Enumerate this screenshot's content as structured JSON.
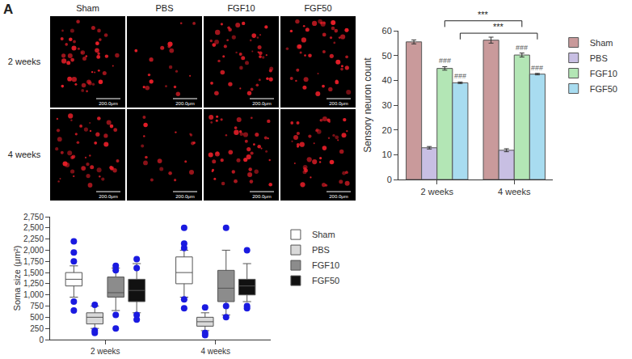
{
  "figure": {
    "panel_a": {
      "label": "A",
      "columns": [
        "Sham",
        "PBS",
        "FGF10",
        "FGF50"
      ],
      "rows": [
        "2 weeks",
        "4 weeks"
      ],
      "scale_bar": "200.0μm"
    }
  },
  "chart_data": [
    {
      "panel": "B",
      "type": "bar",
      "categories": [
        "2 weeks",
        "4 weeks"
      ],
      "y_label": "Sensory neuron count",
      "ylim": [
        0,
        60
      ],
      "yticks": [
        0,
        10,
        20,
        30,
        40,
        50,
        60
      ],
      "grid": false,
      "legend": "right",
      "series": [
        {
          "name": "Sham",
          "color": "#c99a9b",
          "values": [
            55.5,
            56.2
          ],
          "errors": [
            0.8,
            1.2
          ]
        },
        {
          "name": "PBS",
          "color": "#c8bfe3",
          "values": [
            12.8,
            11.8
          ],
          "errors": [
            0.5,
            0.6
          ]
        },
        {
          "name": "FGF10",
          "color": "#b3e6b5",
          "values": [
            44.8,
            50.2
          ],
          "errors": [
            0.7,
            0.8
          ],
          "marks": [
            "###",
            "###"
          ]
        },
        {
          "name": "FGF50",
          "color": "#a8dcf0",
          "values": [
            39,
            42.5
          ],
          "errors": [
            0.3,
            0.3
          ],
          "marks": [
            "###",
            "###"
          ]
        }
      ],
      "comparisons": [
        {
          "label": "***",
          "series": "FGF10",
          "from": "2 weeks",
          "to": "4 weeks",
          "y": 64
        },
        {
          "label": "***",
          "series": "FGF50",
          "from": "2 weeks",
          "to": "4 weeks",
          "y": 59
        }
      ]
    },
    {
      "panel": "C",
      "type": "box",
      "categories": [
        "2 weeks",
        "4 weeks"
      ],
      "y_label": "Soma size (μm²)",
      "ylim": [
        0,
        2750
      ],
      "yticks": [
        0,
        250,
        500,
        750,
        {
          "value": 1000,
          "label": "1,000"
        },
        {
          "value": 1250,
          "label": "1,250"
        },
        {
          "value": 1500,
          "label": "1,500"
        },
        {
          "value": 1750,
          "label": "1,750"
        },
        {
          "value": 2000,
          "label": "2,000"
        },
        {
          "value": 2250,
          "label": "2,250"
        },
        {
          "value": 2500,
          "label": "2,500"
        },
        {
          "value": 2750,
          "label": "2,750"
        }
      ],
      "grid": false,
      "legend": "right",
      "series": [
        {
          "name": "Sham",
          "color": "#ffffff",
          "q1": [
            1200,
            1250
          ],
          "median": [
            1350,
            1500
          ],
          "q3": [
            1500,
            1850
          ],
          "lower": [
            950,
            950
          ],
          "upper": [
            1650,
            2000
          ],
          "outliers": [
            [
              2200,
              1950,
              1750,
              850,
              650
            ],
            [
              2500,
              2150,
              2050,
              900,
              700
            ]
          ]
        },
        {
          "name": "PBS",
          "color": "#d9d9d9",
          "q1": [
            350,
            300
          ],
          "median": [
            500,
            400
          ],
          "q3": [
            600,
            500
          ],
          "lower": [
            250,
            200
          ],
          "upper": [
            750,
            600
          ],
          "outliers": [
            [
              780,
              200,
              150
            ],
            [
              720,
              150,
              100
            ]
          ]
        },
        {
          "name": "FGF10",
          "color": "#8c8c8c",
          "q1": [
            950,
            850
          ],
          "median": [
            1050,
            1150
          ],
          "q3": [
            1400,
            1550
          ],
          "lower": [
            650,
            550
          ],
          "upper": [
            1600,
            2000
          ],
          "outliers": [
            [
              1650,
              1550,
              550,
              250
            ],
            [
              2500,
              750,
              500
            ]
          ]
        },
        {
          "name": "FGF50",
          "color": "#111111",
          "q1": [
            850,
            1000
          ],
          "median": [
            1100,
            1200
          ],
          "q3": [
            1350,
            1350
          ],
          "lower": [
            600,
            850
          ],
          "upper": [
            1700,
            1700
          ],
          "outliers": [
            [
              1800,
              1600,
              550,
              450
            ],
            [
              2000,
              750,
              700
            ]
          ]
        }
      ]
    }
  ]
}
